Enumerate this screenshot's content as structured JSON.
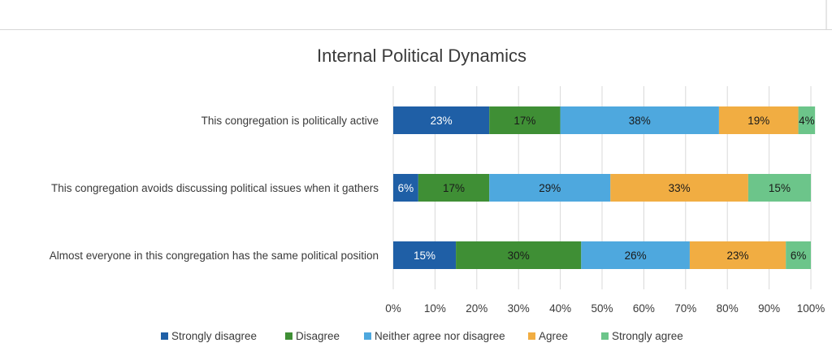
{
  "chart_data": {
    "type": "bar",
    "orientation": "horizontal",
    "stacked": "percent",
    "title": "Internal Political Dynamics",
    "categories": [
      "This congregation is politically active",
      "This congregation avoids discussing political issues when it gathers",
      "Almost everyone in this congregation has the same political position"
    ],
    "series": [
      {
        "name": "Strongly disagree",
        "color": "#1f5fa6",
        "values": [
          23,
          6,
          15
        ]
      },
      {
        "name": "Disagree",
        "color": "#3f8f35",
        "values": [
          17,
          17,
          30
        ]
      },
      {
        "name": "Neither agree nor disagree",
        "color": "#4ea8de",
        "values": [
          38,
          29,
          26
        ]
      },
      {
        "name": "Agree",
        "color": "#f1ad42",
        "values": [
          19,
          33,
          23
        ]
      },
      {
        "name": "Strongly agree",
        "color": "#6cc58a",
        "values": [
          4,
          15,
          6
        ]
      }
    ],
    "xlim": [
      0,
      100
    ],
    "x_ticks": [
      "0%",
      "10%",
      "20%",
      "30%",
      "40%",
      "50%",
      "60%",
      "70%",
      "80%",
      "90%",
      "100%"
    ],
    "grid": "vertical",
    "legend": "bottom"
  }
}
